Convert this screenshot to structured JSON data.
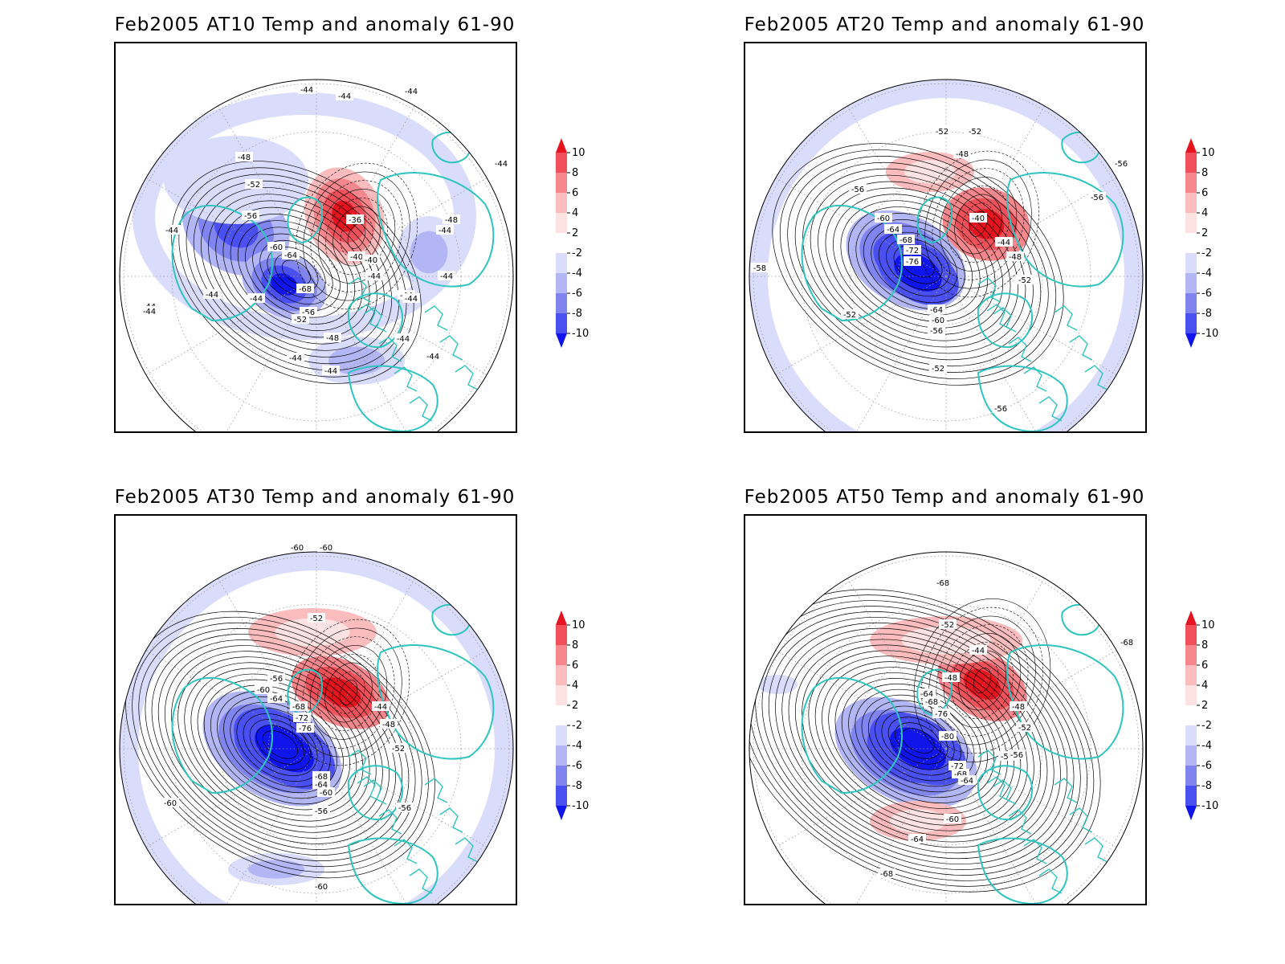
{
  "panels": [
    {
      "title": "Feb2005 AT10 Temp and anomaly 61-90",
      "labels": [
        "-44",
        "-44",
        "-44",
        "-44",
        "-48",
        "-52",
        "-56",
        "-60",
        "-64",
        "-68",
        "-56",
        "-52",
        "-44",
        "-44",
        "-44",
        "-44",
        "-40",
        "-36",
        "-40",
        "-44",
        "-48",
        "-44",
        "-44",
        "-44",
        "-44",
        "-44",
        "-48",
        "-44",
        "-44",
        "-44",
        "-44"
      ]
    },
    {
      "title": "Feb2005 AT20 Temp and anomaly 61-90",
      "labels": [
        "-52",
        "-52",
        "-48",
        "-56",
        "-56",
        "-60",
        "-64",
        "-68",
        "-72",
        "-76",
        "-40",
        "-44",
        "-48",
        "-52",
        "-64",
        "-60",
        "-56",
        "-52",
        "-52",
        "-56",
        "-56",
        "-58",
        "-52"
      ]
    },
    {
      "title": "Feb2005 AT30 Temp and anomaly 61-90",
      "labels": [
        "-60",
        "-60",
        "-52",
        "-56",
        "-60",
        "-64",
        "-68",
        "-72",
        "-76",
        "-44",
        "-48",
        "-52",
        "-68",
        "-64",
        "-60",
        "-56",
        "-56",
        "-60",
        "-60"
      ]
    },
    {
      "title": "Feb2005 AT50 Temp and anomaly 61-90",
      "labels": [
        "-68",
        "-52",
        "-44",
        "-48",
        "-56",
        "-64",
        "-68",
        "-76",
        "-80",
        "-48",
        "-52",
        "-56",
        "-72",
        "-68",
        "-64",
        "-60",
        "-64",
        "-68",
        "-68"
      ]
    }
  ],
  "colorbar": {
    "ticks": [
      "10",
      "8",
      "6",
      "4",
      "2",
      "-2",
      "-4",
      "-6",
      "-8",
      "-10"
    ],
    "colors": [
      "#e6141e",
      "#f0505a",
      "#f7878c",
      "#fbbcbd",
      "#fde2e2",
      "#ffffff",
      "#dadcfb",
      "#b3b6f5",
      "#7f84ef",
      "#4a4ff0",
      "#1015ec"
    ]
  },
  "map_colors": {
    "coastline": "#2ec4c0",
    "contour": "#000000",
    "grid": "#9a9a9a"
  }
}
